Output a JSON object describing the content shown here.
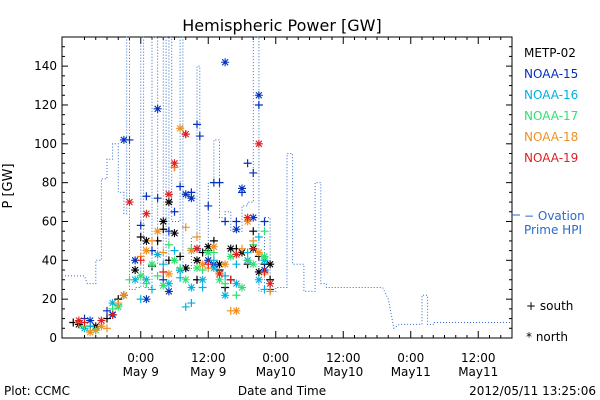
{
  "chart_data": {
    "type": "scatter",
    "title": "Hemispheric Power [GW]",
    "ylabel": "P [GW]",
    "xlabel": "Date and Time",
    "x_unit": "hours from 2012-05-08 12:00 UT",
    "xlim": [
      -2,
      78
    ],
    "ylim": [
      0,
      155
    ],
    "y_ticks": [
      0,
      20,
      40,
      60,
      80,
      100,
      120,
      140
    ],
    "x_ticks": [
      {
        "x": 12,
        "time": "0:00",
        "date": "May 9"
      },
      {
        "x": 24,
        "time": "12:00",
        "date": "May 9"
      },
      {
        "x": 36,
        "time": "0:00",
        "date": "May10"
      },
      {
        "x": 48,
        "time": "12:00",
        "date": "May10"
      },
      {
        "x": 60,
        "time": "0:00",
        "date": "May11"
      },
      {
        "x": 72,
        "time": "12:00",
        "date": "May11"
      }
    ],
    "footer_left": "Plot: CCMC",
    "footer_right": "2012/05/11 13:25:06",
    "legend_position": "right",
    "series": [
      {
        "name": "METP-02",
        "color": "#000000",
        "south": [
          [
            0,
            8
          ],
          [
            3,
            6
          ],
          [
            6,
            10
          ],
          [
            8,
            20
          ],
          [
            12,
            52
          ],
          [
            14,
            37
          ],
          [
            15,
            50
          ],
          [
            16,
            56
          ],
          [
            17,
            40
          ],
          [
            18,
            88
          ],
          [
            19,
            42
          ],
          [
            22,
            30
          ],
          [
            23,
            44
          ],
          [
            24,
            45
          ],
          [
            25,
            50
          ],
          [
            26,
            35
          ],
          [
            27,
            26
          ],
          [
            28,
            30
          ],
          [
            29,
            46
          ],
          [
            31,
            38
          ],
          [
            32,
            55
          ],
          [
            33,
            42
          ],
          [
            34,
            38
          ],
          [
            35,
            30
          ]
        ],
        "north": [
          [
            1,
            7
          ],
          [
            4,
            6
          ],
          [
            7,
            12
          ],
          [
            9,
            22
          ],
          [
            11,
            35
          ],
          [
            13,
            50
          ],
          [
            16,
            60
          ],
          [
            17,
            70
          ],
          [
            18,
            54
          ],
          [
            20,
            36
          ],
          [
            22,
            40
          ],
          [
            24,
            47
          ],
          [
            26,
            38
          ],
          [
            28,
            46
          ],
          [
            30,
            44
          ],
          [
            32,
            46
          ],
          [
            33,
            34
          ],
          [
            35,
            38
          ]
        ]
      },
      {
        "name": "NOAA-15",
        "color": "#0030c0",
        "south": [
          [
            2,
            10
          ],
          [
            6,
            14
          ],
          [
            10,
            102
          ],
          [
            12,
            58
          ],
          [
            13,
            73
          ],
          [
            14,
            45
          ],
          [
            15,
            72
          ],
          [
            16,
            30
          ],
          [
            17,
            55
          ],
          [
            18,
            65
          ],
          [
            19,
            78
          ],
          [
            21,
            75
          ],
          [
            22,
            110
          ],
          [
            22.5,
            104
          ],
          [
            24,
            68
          ],
          [
            25,
            80
          ],
          [
            26,
            80
          ],
          [
            27,
            60
          ],
          [
            29,
            60
          ],
          [
            30,
            75
          ],
          [
            31,
            90
          ],
          [
            32,
            85
          ],
          [
            33,
            120
          ],
          [
            34,
            60
          ],
          [
            35,
            25
          ]
        ],
        "north": [
          [
            3,
            9
          ],
          [
            7,
            12
          ],
          [
            9,
            102
          ],
          [
            11,
            40
          ],
          [
            13,
            20
          ],
          [
            15,
            118
          ],
          [
            17,
            24
          ],
          [
            19,
            35
          ],
          [
            20,
            74
          ],
          [
            21,
            72
          ],
          [
            22,
            46
          ],
          [
            24,
            40
          ],
          [
            25,
            38
          ],
          [
            27,
            142
          ],
          [
            29,
            56
          ],
          [
            30,
            77
          ],
          [
            32,
            62
          ],
          [
            33,
            125
          ],
          [
            34,
            35
          ]
        ]
      },
      {
        "name": "NOAA-16",
        "color": "#00b0e0",
        "south": [
          [
            3,
            6
          ],
          [
            8,
            17
          ],
          [
            12,
            20
          ],
          [
            14,
            25
          ],
          [
            16,
            38
          ],
          [
            18,
            45
          ],
          [
            19,
            31
          ],
          [
            20,
            16
          ],
          [
            21,
            18
          ],
          [
            23,
            26
          ],
          [
            25,
            40
          ],
          [
            27,
            32
          ],
          [
            29,
            38
          ],
          [
            31,
            44
          ],
          [
            33,
            52
          ],
          [
            34,
            25
          ]
        ],
        "north": [
          [
            2,
            5
          ],
          [
            7,
            18
          ],
          [
            11,
            30
          ],
          [
            13,
            30
          ],
          [
            15,
            43
          ],
          [
            17,
            28
          ],
          [
            19,
            35
          ],
          [
            21,
            26
          ],
          [
            23,
            30
          ],
          [
            25,
            36
          ],
          [
            27,
            22
          ],
          [
            29,
            28
          ],
          [
            31,
            40
          ],
          [
            33,
            30
          ],
          [
            34,
            40
          ]
        ]
      },
      {
        "name": "NOAA-17",
        "color": "#30e070",
        "south": [
          [
            2,
            6
          ],
          [
            7,
            15
          ],
          [
            10,
            30
          ],
          [
            13,
            28
          ],
          [
            15,
            32
          ],
          [
            17,
            48
          ],
          [
            19,
            36
          ],
          [
            21,
            46
          ],
          [
            23,
            35
          ],
          [
            25,
            44
          ],
          [
            27,
            28
          ],
          [
            29,
            22
          ],
          [
            31,
            40
          ],
          [
            32,
            48
          ],
          [
            34,
            55
          ]
        ],
        "north": [
          [
            4,
            4
          ],
          [
            8,
            16
          ],
          [
            12,
            32
          ],
          [
            14,
            38
          ],
          [
            16,
            27
          ],
          [
            18,
            40
          ],
          [
            20,
            30
          ],
          [
            22,
            36
          ],
          [
            24,
            44
          ],
          [
            26,
            30
          ],
          [
            28,
            42
          ],
          [
            30,
            26
          ],
          [
            32,
            38
          ],
          [
            34,
            42
          ]
        ]
      },
      {
        "name": "NOAA-18",
        "color": "#f09020",
        "south": [
          [
            1,
            8
          ],
          [
            4,
            4
          ],
          [
            6,
            5
          ],
          [
            8,
            18
          ],
          [
            12,
            42
          ],
          [
            14,
            50
          ],
          [
            16,
            44
          ],
          [
            18,
            88
          ],
          [
            20,
            57
          ],
          [
            22,
            52
          ],
          [
            24,
            36
          ],
          [
            26,
            34
          ],
          [
            28,
            14
          ],
          [
            30,
            46
          ],
          [
            32,
            50
          ],
          [
            34,
            33
          ],
          [
            35,
            24
          ]
        ],
        "north": [
          [
            3,
            3
          ],
          [
            5,
            6
          ],
          [
            9,
            22
          ],
          [
            13,
            45
          ],
          [
            15,
            55
          ],
          [
            17,
            33
          ],
          [
            19,
            108
          ],
          [
            21,
            45
          ],
          [
            23,
            38
          ],
          [
            25,
            47
          ],
          [
            27,
            38
          ],
          [
            29,
            14
          ],
          [
            31,
            60
          ],
          [
            33,
            44
          ]
        ]
      },
      {
        "name": "NOAA-19",
        "color": "#e02020",
        "south": [
          [
            2,
            8
          ],
          [
            7,
            12
          ],
          [
            12,
            40
          ],
          [
            16,
            34
          ],
          [
            20,
            105
          ],
          [
            24,
            38
          ],
          [
            28,
            30
          ],
          [
            32,
            46
          ],
          [
            34,
            34
          ]
        ],
        "north": [
          [
            1,
            9
          ],
          [
            5,
            9
          ],
          [
            10,
            70
          ],
          [
            13,
            64
          ],
          [
            17,
            74
          ],
          [
            18,
            90
          ],
          [
            20,
            105
          ],
          [
            22,
            46
          ],
          [
            26,
            33
          ],
          [
            29,
            43
          ],
          [
            31,
            62
          ],
          [
            33,
            100
          ],
          [
            35,
            28
          ]
        ]
      }
    ],
    "ovation": {
      "name": "− Ovation Prime HPI",
      "name_lines": [
        "− Ovation",
        "Prime HPI"
      ],
      "color": "#2a6acd",
      "style": "dotted step",
      "points": [
        [
          -2,
          32
        ],
        [
          2,
          32
        ],
        [
          2.5,
          28
        ],
        [
          4,
          28
        ],
        [
          4,
          40
        ],
        [
          5,
          40
        ],
        [
          5,
          82
        ],
        [
          6,
          82
        ],
        [
          6,
          92
        ],
        [
          7,
          92
        ],
        [
          7,
          100
        ],
        [
          8,
          100
        ],
        [
          8,
          75
        ],
        [
          9,
          75
        ],
        [
          9,
          64
        ],
        [
          9.5,
          64
        ],
        [
          9.5,
          155
        ],
        [
          10,
          155
        ],
        [
          10,
          25
        ],
        [
          11,
          25
        ],
        [
          11,
          26
        ],
        [
          12,
          26
        ],
        [
          12,
          155
        ],
        [
          12.5,
          155
        ],
        [
          12.5,
          26
        ],
        [
          14,
          26
        ],
        [
          14,
          155
        ],
        [
          15,
          155
        ],
        [
          15,
          38
        ],
        [
          16,
          38
        ],
        [
          16,
          155
        ],
        [
          16.5,
          155
        ],
        [
          16.5,
          38
        ],
        [
          17,
          38
        ],
        [
          17,
          155
        ],
        [
          17.5,
          155
        ],
        [
          17.5,
          60
        ],
        [
          19,
          60
        ],
        [
          19,
          155
        ],
        [
          19.5,
          155
        ],
        [
          19.5,
          35
        ],
        [
          21,
          35
        ],
        [
          21,
          52
        ],
        [
          22,
          52
        ],
        [
          22,
          140
        ],
        [
          22.5,
          140
        ],
        [
          22.5,
          45
        ],
        [
          24,
          45
        ],
        [
          24,
          80
        ],
        [
          25,
          80
        ],
        [
          25,
          102
        ],
        [
          26,
          102
        ],
        [
          26,
          62
        ],
        [
          27,
          62
        ],
        [
          27,
          65
        ],
        [
          28,
          65
        ],
        [
          28,
          55
        ],
        [
          30,
          55
        ],
        [
          30,
          68
        ],
        [
          31,
          68
        ],
        [
          31,
          70
        ],
        [
          32,
          70
        ],
        [
          32,
          155
        ],
        [
          33,
          155
        ],
        [
          33,
          24
        ],
        [
          34,
          24
        ],
        [
          34,
          62
        ],
        [
          35,
          62
        ],
        [
          35,
          24
        ],
        [
          36,
          24
        ],
        [
          36,
          26
        ],
        [
          38,
          26
        ],
        [
          38,
          95
        ],
        [
          39,
          95
        ],
        [
          39,
          38
        ],
        [
          41,
          38
        ],
        [
          41,
          24
        ],
        [
          43,
          24
        ],
        [
          43,
          80
        ],
        [
          44,
          80
        ],
        [
          44,
          28
        ],
        [
          45,
          28
        ],
        [
          45,
          26
        ],
        [
          55,
          26
        ],
        [
          56,
          20
        ],
        [
          57,
          5
        ],
        [
          58,
          7
        ],
        [
          62,
          7
        ],
        [
          62,
          22
        ],
        [
          63,
          22
        ],
        [
          63,
          7
        ],
        [
          64,
          7
        ],
        [
          64,
          8
        ],
        [
          78,
          8
        ]
      ]
    },
    "symbol_key": [
      {
        "symbol": "+",
        "label": "south"
      },
      {
        "symbol": "*",
        "label": "north"
      }
    ]
  }
}
